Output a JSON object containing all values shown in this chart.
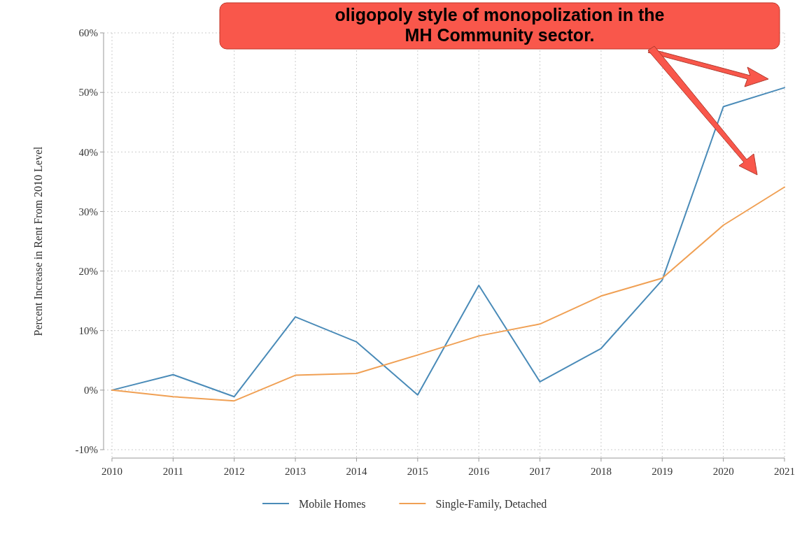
{
  "chart_data": {
    "type": "line",
    "ylabel": "Percent Increase in Rent From 2010 Level",
    "annotations": [
      "oligopoly style of monopolization in the MH Community sector."
    ],
    "x": [
      2010,
      2011,
      2012,
      2013,
      2014,
      2015,
      2016,
      2017,
      2018,
      2019,
      2020,
      2021
    ],
    "xlim": [
      2010,
      2021
    ],
    "xticks": [
      2010,
      2011,
      2012,
      2013,
      2014,
      2015,
      2016,
      2017,
      2018,
      2019,
      2020,
      2021
    ],
    "ylim": [
      -10,
      60
    ],
    "yticks": [
      {
        "value": -10,
        "label": "-10%"
      },
      {
        "value": 0,
        "label": "0%"
      },
      {
        "value": 10,
        "label": "10%"
      },
      {
        "value": 20,
        "label": "20%"
      },
      {
        "value": 30,
        "label": "30%"
      },
      {
        "value": 40,
        "label": "40%"
      },
      {
        "value": 50,
        "label": "50%"
      },
      {
        "value": 60,
        "label": "60%"
      }
    ],
    "series": [
      {
        "name": "Mobile Homes",
        "color": "#4a8bb8",
        "values": [
          0,
          2.6,
          -1.1,
          12.3,
          8.1,
          -0.8,
          17.6,
          1.4,
          7.0,
          18.5,
          47.6,
          50.8
        ]
      },
      {
        "name": "Single-Family, Detached",
        "color": "#f0a054",
        "values": [
          0,
          -1.1,
          -1.8,
          2.5,
          2.8,
          5.9,
          9.1,
          11.1,
          15.8,
          18.8,
          27.7,
          34.1
        ]
      }
    ],
    "grid": true,
    "legend": "bottom",
    "line_style": "solid",
    "marker": "none"
  }
}
